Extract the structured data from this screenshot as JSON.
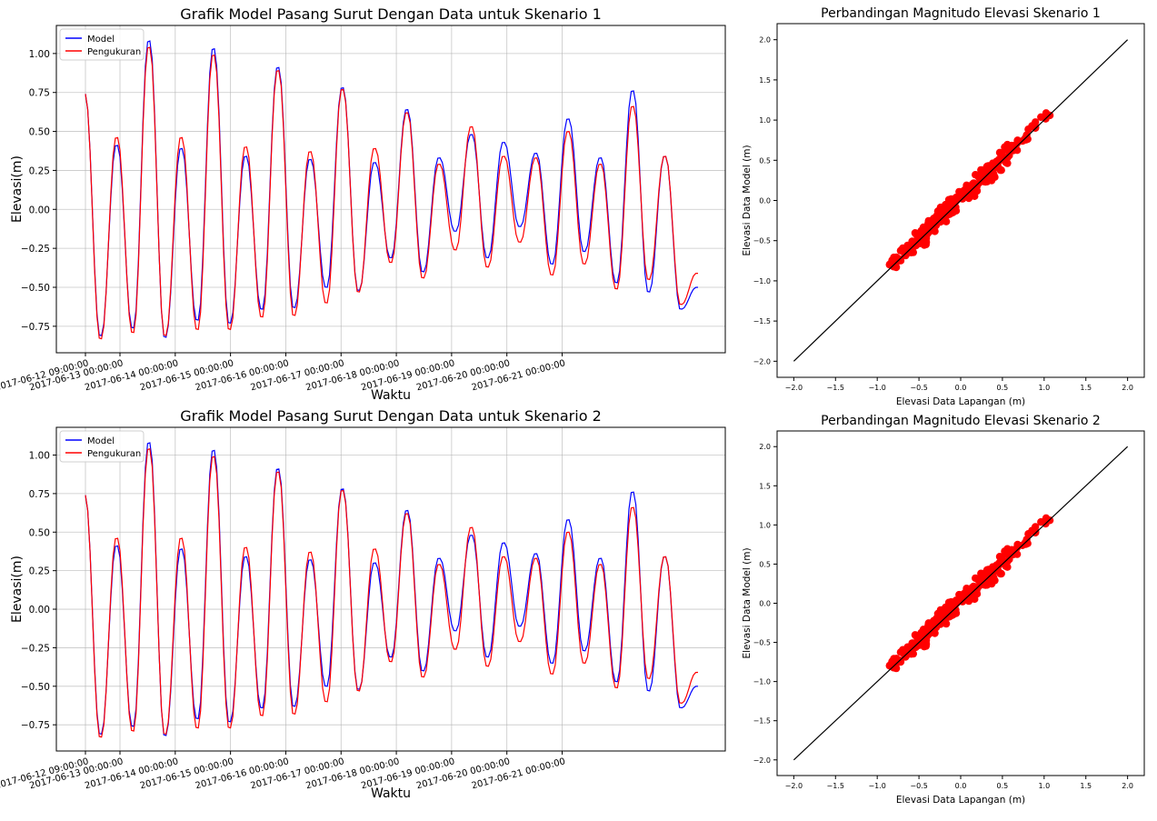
{
  "colors": {
    "model": "#0000ff",
    "measurement": "#ff0000",
    "identity_line": "#000000",
    "scatter": "#ff0000"
  },
  "chart_data": [
    {
      "type": "line",
      "title": "Grafik Model Pasang Surut Dengan Data untuk Skenario 1",
      "xlabel": "Waktu",
      "ylabel": "Elevasi(m)",
      "x_start": "2017-06-12 09:00:00",
      "x_step_hours": 1,
      "x_ticks": [
        "2017-06-12 09:00:00",
        "2017-06-13 00:00:00",
        "2017-06-14 00:00:00",
        "2017-06-15 00:00:00",
        "2017-06-16 00:00:00",
        "2017-06-17 00:00:00",
        "2017-06-18 00:00:00",
        "2017-06-19 00:00:00",
        "2017-06-20 00:00:00",
        "2017-06-21 00:00:00"
      ],
      "y_ticks": [
        "−0.75",
        "−0.50",
        "−0.25",
        "0.00",
        "0.25",
        "0.50",
        "0.75",
        "1.00"
      ],
      "ylim": [
        -0.92,
        1.18
      ],
      "grid": true,
      "legend": "top-left",
      "series": [
        {
          "name": "Model",
          "extrema": [
            0.74,
            -0.81,
            0.41,
            -0.76,
            1.08,
            -0.82,
            0.39,
            -0.71,
            1.03,
            -0.73,
            0.34,
            -0.64,
            0.91,
            -0.63,
            0.32,
            -0.5,
            0.78,
            -0.52,
            0.3,
            -0.31,
            0.64,
            -0.4,
            0.33,
            -0.14,
            0.48,
            -0.31,
            0.43,
            -0.11,
            0.36,
            -0.35,
            0.58,
            -0.27,
            0.33,
            -0.47,
            0.76,
            -0.53,
            0.34,
            -0.64,
            -0.5
          ]
        },
        {
          "name": "Pengukuran",
          "extrema": [
            0.74,
            -0.83,
            0.46,
            -0.79,
            1.04,
            -0.81,
            0.46,
            -0.77,
            0.99,
            -0.77,
            0.4,
            -0.69,
            0.89,
            -0.68,
            0.37,
            -0.6,
            0.77,
            -0.53,
            0.39,
            -0.34,
            0.62,
            -0.44,
            0.29,
            -0.26,
            0.53,
            -0.37,
            0.34,
            -0.21,
            0.33,
            -0.42,
            0.5,
            -0.35,
            0.29,
            -0.51,
            0.66,
            -0.45,
            0.34,
            -0.61,
            -0.41
          ]
        }
      ]
    },
    {
      "type": "scatter",
      "title": "Perbandingan Magnitudo Elevasi Skenario 1",
      "xlabel": "Elevasi Data Lapangan (m)",
      "ylabel": "Elevasi Data Model (m)",
      "x_ticks": [
        "−2.0",
        "−1.5",
        "−1.0",
        "−0.5",
        "0.0",
        "0.5",
        "1.0",
        "1.5",
        "2.0"
      ],
      "y_ticks": [
        "−2.0",
        "−1.5",
        "−1.0",
        "−0.5",
        "0.0",
        "0.5",
        "1.0",
        "1.5",
        "2.0"
      ],
      "xlim": [
        -2.2,
        2.2
      ],
      "ylim": [
        -2.2,
        2.2
      ],
      "identity_line": [
        [
          -2.0,
          -2.0
        ],
        [
          2.0,
          2.0
        ]
      ],
      "grid": false
    },
    {
      "type": "line",
      "title": "Grafik Model Pasang Surut Dengan Data untuk Skenario 2",
      "xlabel": "Waktu",
      "ylabel": "Elevasi(m)",
      "x_start": "2017-06-12 09:00:00",
      "x_step_hours": 1,
      "x_ticks": [
        "2017-06-12 09:00:00",
        "2017-06-13 00:00:00",
        "2017-06-14 00:00:00",
        "2017-06-15 00:00:00",
        "2017-06-16 00:00:00",
        "2017-06-17 00:00:00",
        "2017-06-18 00:00:00",
        "2017-06-19 00:00:00",
        "2017-06-20 00:00:00",
        "2017-06-21 00:00:00"
      ],
      "y_ticks": [
        "−0.75",
        "−0.50",
        "−0.25",
        "0.00",
        "0.25",
        "0.50",
        "0.75",
        "1.00"
      ],
      "ylim": [
        -0.92,
        1.18
      ],
      "grid": true,
      "legend": "top-left",
      "series": [
        {
          "name": "Model",
          "extrema": [
            0.74,
            -0.81,
            0.41,
            -0.76,
            1.08,
            -0.82,
            0.39,
            -0.71,
            1.03,
            -0.73,
            0.34,
            -0.64,
            0.91,
            -0.63,
            0.32,
            -0.5,
            0.78,
            -0.52,
            0.3,
            -0.31,
            0.64,
            -0.4,
            0.33,
            -0.14,
            0.48,
            -0.31,
            0.43,
            -0.11,
            0.36,
            -0.35,
            0.58,
            -0.27,
            0.33,
            -0.47,
            0.76,
            -0.53,
            0.34,
            -0.64,
            -0.5
          ]
        },
        {
          "name": "Pengukuran",
          "extrema": [
            0.74,
            -0.83,
            0.46,
            -0.79,
            1.04,
            -0.81,
            0.46,
            -0.77,
            0.99,
            -0.77,
            0.4,
            -0.69,
            0.89,
            -0.68,
            0.37,
            -0.6,
            0.77,
            -0.53,
            0.39,
            -0.34,
            0.62,
            -0.44,
            0.29,
            -0.26,
            0.53,
            -0.37,
            0.34,
            -0.21,
            0.33,
            -0.42,
            0.5,
            -0.35,
            0.29,
            -0.51,
            0.66,
            -0.45,
            0.34,
            -0.61,
            -0.41
          ]
        }
      ]
    },
    {
      "type": "scatter",
      "title": "Perbandingan Magnitudo Elevasi Skenario 2",
      "xlabel": "Elevasi Data Lapangan (m)",
      "ylabel": "Elevasi Data Model (m)",
      "x_ticks": [
        "−2.0",
        "−1.5",
        "−1.0",
        "−0.5",
        "0.0",
        "0.5",
        "1.0",
        "1.5",
        "2.0"
      ],
      "y_ticks": [
        "−2.0",
        "−1.5",
        "−1.0",
        "−0.5",
        "0.0",
        "0.5",
        "1.0",
        "1.5",
        "2.0"
      ],
      "xlim": [
        -2.2,
        2.2
      ],
      "ylim": [
        -2.2,
        2.2
      ],
      "identity_line": [
        [
          -2.0,
          -2.0
        ],
        [
          2.0,
          2.0
        ]
      ],
      "grid": false
    }
  ]
}
